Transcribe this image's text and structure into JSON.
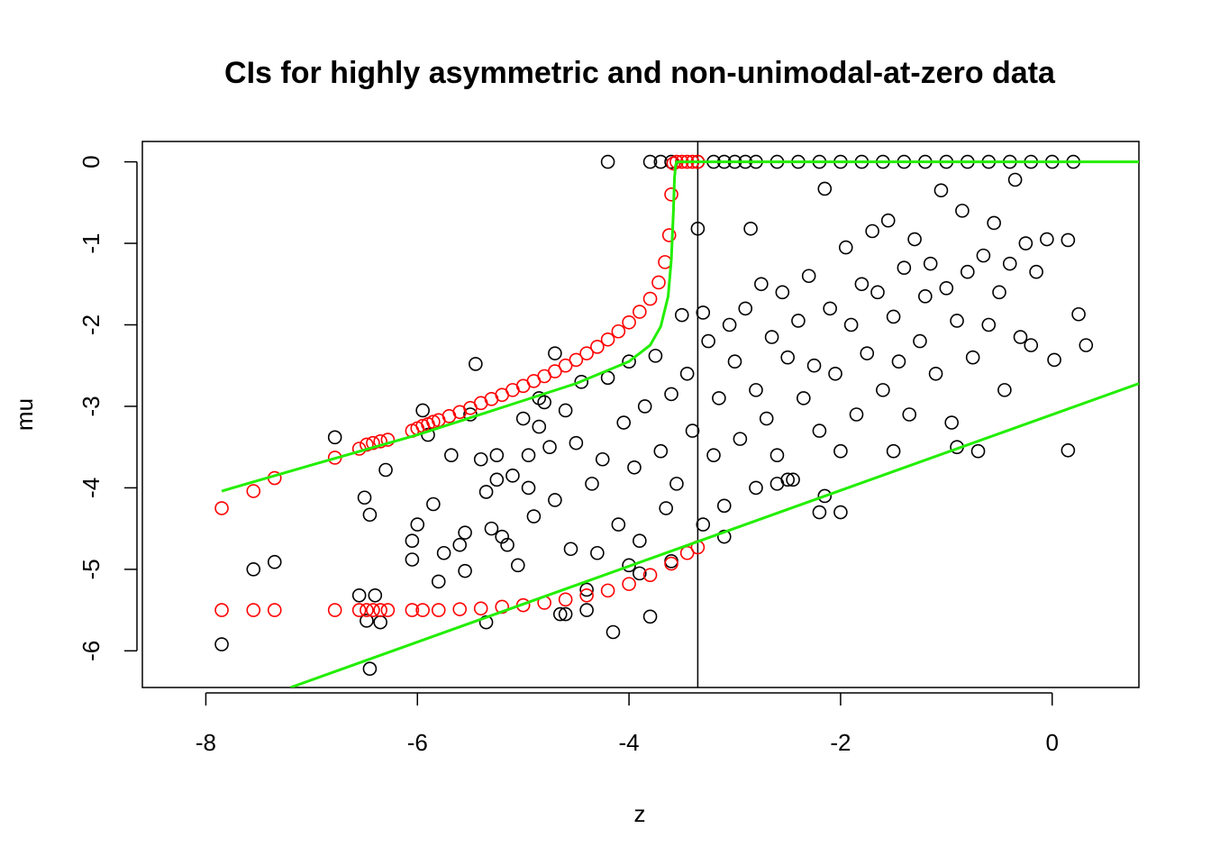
{
  "chart_data": {
    "type": "scatter",
    "title": "CIs for highly asymmetric and non-unimodal-at-zero data",
    "xlabel": "z",
    "ylabel": "mu",
    "xlim": [
      -8.6,
      0.82
    ],
    "ylim": [
      -6.45,
      0.25
    ],
    "xticks": [
      -8,
      -6,
      -4,
      -2,
      0
    ],
    "yticks": [
      0,
      -1,
      -2,
      -3,
      -4,
      -5,
      -6
    ],
    "xtick_labels": [
      "-8",
      "-6",
      "-4",
      "-2",
      "0"
    ],
    "ytick_labels": [
      "0",
      "-1",
      "-2",
      "-3",
      "-4",
      "-5",
      "-6"
    ],
    "vertical_line_x": -3.35,
    "grid": false,
    "legend": "none",
    "colors": {
      "observations": "#000000",
      "ci_endpoints": "#ff0000",
      "ci_reference_lines": "#22ee00"
    },
    "series": [
      {
        "type": "scatter-open-circle",
        "color": "#000000",
        "points": [
          [
            -7.85,
            -5.92
          ],
          [
            -7.35,
            -4.91
          ],
          [
            -7.55,
            -5.0
          ],
          [
            -6.78,
            -3.38
          ],
          [
            -6.55,
            -5.32
          ],
          [
            -6.48,
            -5.63
          ],
          [
            -6.45,
            -6.22
          ],
          [
            -6.4,
            -5.32
          ],
          [
            -6.35,
            -5.65
          ],
          [
            -6.3,
            -3.78
          ],
          [
            -6.45,
            -4.33
          ],
          [
            -6.5,
            -4.12
          ],
          [
            -6.05,
            -4.88
          ],
          [
            -6.05,
            -4.65
          ],
          [
            -6.0,
            -4.45
          ],
          [
            -5.95,
            -3.05
          ],
          [
            -5.9,
            -3.35
          ],
          [
            -5.85,
            -4.2
          ],
          [
            -5.8,
            -5.15
          ],
          [
            -5.75,
            -4.8
          ],
          [
            -5.68,
            -3.6
          ],
          [
            -5.6,
            -4.7
          ],
          [
            -5.55,
            -5.02
          ],
          [
            -5.5,
            -3.1
          ],
          [
            -5.45,
            -2.48
          ],
          [
            -5.4,
            -3.65
          ],
          [
            -5.35,
            -5.65
          ],
          [
            -5.3,
            -4.5
          ],
          [
            -5.25,
            -3.9
          ],
          [
            -5.2,
            -4.6
          ],
          [
            -5.1,
            -3.85
          ],
          [
            -5.05,
            -4.95
          ],
          [
            -5.0,
            -3.15
          ],
          [
            -4.95,
            -4.0
          ],
          [
            -4.9,
            -4.35
          ],
          [
            -4.85,
            -3.25
          ],
          [
            -4.8,
            -2.95
          ],
          [
            -4.75,
            -3.5
          ],
          [
            -4.7,
            -4.15
          ],
          [
            -4.65,
            -5.55
          ],
          [
            -4.6,
            -3.05
          ],
          [
            -4.55,
            -4.75
          ],
          [
            -4.5,
            -3.45
          ],
          [
            -4.45,
            -2.7
          ],
          [
            -4.4,
            -5.5
          ],
          [
            -4.35,
            -3.95
          ],
          [
            -4.3,
            -4.8
          ],
          [
            -4.25,
            -3.65
          ],
          [
            -4.2,
            -2.65
          ],
          [
            -4.15,
            -5.77
          ],
          [
            -4.1,
            -4.45
          ],
          [
            -4.05,
            -3.2
          ],
          [
            -4.0,
            -2.45
          ],
          [
            -3.95,
            -3.75
          ],
          [
            -3.9,
            -4.65
          ],
          [
            -3.85,
            -3.0
          ],
          [
            -3.8,
            -5.58
          ],
          [
            -3.75,
            -2.38
          ],
          [
            -3.7,
            -3.55
          ],
          [
            -3.65,
            -4.25
          ],
          [
            -3.6,
            -2.85
          ],
          [
            -3.55,
            -3.95
          ],
          [
            -3.5,
            -1.88
          ],
          [
            -3.45,
            -2.6
          ],
          [
            -3.4,
            -3.3
          ],
          [
            -3.35,
            -0.82
          ],
          [
            -3.3,
            -1.85
          ],
          [
            -3.25,
            -2.2
          ],
          [
            -3.2,
            -3.6
          ],
          [
            -3.15,
            -2.9
          ],
          [
            -3.1,
            -4.22
          ],
          [
            -3.05,
            -2.0
          ],
          [
            -3.0,
            -2.45
          ],
          [
            -2.95,
            -3.4
          ],
          [
            -2.9,
            -1.8
          ],
          [
            -2.85,
            -0.82
          ],
          [
            -2.8,
            -2.8
          ],
          [
            -2.75,
            -1.5
          ],
          [
            -2.7,
            -3.15
          ],
          [
            -2.65,
            -2.15
          ],
          [
            -2.6,
            -3.6
          ],
          [
            -2.55,
            -1.6
          ],
          [
            -2.5,
            -2.4
          ],
          [
            -2.45,
            -3.9
          ],
          [
            -2.4,
            -1.95
          ],
          [
            -2.35,
            -2.9
          ],
          [
            -2.3,
            -1.4
          ],
          [
            -2.25,
            -2.5
          ],
          [
            -2.2,
            -3.3
          ],
          [
            -2.15,
            -0.33
          ],
          [
            -2.1,
            -1.8
          ],
          [
            -2.05,
            -2.6
          ],
          [
            -2.0,
            -4.3
          ],
          [
            -1.95,
            -1.05
          ],
          [
            -1.9,
            -2.0
          ],
          [
            -1.85,
            -3.1
          ],
          [
            -1.8,
            -1.5
          ],
          [
            -1.75,
            -2.35
          ],
          [
            -1.7,
            -0.85
          ],
          [
            -1.65,
            -1.6
          ],
          [
            -1.6,
            -2.8
          ],
          [
            -1.55,
            -0.72
          ],
          [
            -1.5,
            -1.9
          ],
          [
            -1.45,
            -2.45
          ],
          [
            -1.4,
            -1.3
          ],
          [
            -1.35,
            -3.1
          ],
          [
            -1.3,
            -0.95
          ],
          [
            -1.25,
            -2.2
          ],
          [
            -1.2,
            -1.65
          ],
          [
            -1.15,
            -1.25
          ],
          [
            -1.1,
            -2.6
          ],
          [
            -1.05,
            -0.35
          ],
          [
            -1.0,
            -1.55
          ],
          [
            -0.95,
            -3.2
          ],
          [
            -0.9,
            -1.95
          ],
          [
            -0.85,
            -0.6
          ],
          [
            -0.8,
            -1.35
          ],
          [
            -0.75,
            -2.4
          ],
          [
            -0.7,
            -3.55
          ],
          [
            -0.65,
            -1.15
          ],
          [
            -0.6,
            -2.0
          ],
          [
            -0.55,
            -0.75
          ],
          [
            -0.5,
            -1.6
          ],
          [
            -0.45,
            -2.8
          ],
          [
            -0.4,
            -1.25
          ],
          [
            -0.35,
            -0.22
          ],
          [
            -0.3,
            -2.15
          ],
          [
            -0.25,
            -1.0
          ],
          [
            -0.2,
            -2.25
          ],
          [
            -0.15,
            -1.35
          ],
          [
            -0.05,
            -0.95
          ],
          [
            0.02,
            -2.43
          ],
          [
            0.15,
            -3.54
          ],
          [
            0.15,
            -0.96
          ],
          [
            0.25,
            -1.87
          ],
          [
            0.32,
            -2.25
          ],
          [
            -0.9,
            -3.5
          ],
          [
            -1.5,
            -3.55
          ],
          [
            -2.0,
            -3.55
          ],
          [
            -2.5,
            -3.9
          ],
          [
            -2.8,
            -4.0
          ],
          [
            -3.1,
            -4.6
          ],
          [
            -3.6,
            -4.9
          ],
          [
            -4.0,
            -4.95
          ],
          [
            -4.4,
            -5.25
          ],
          [
            -4.6,
            -5.55
          ],
          [
            -3.9,
            -5.05
          ],
          [
            -3.3,
            -4.45
          ],
          [
            -4.95,
            -3.6
          ],
          [
            -5.15,
            -4.7
          ],
          [
            -5.55,
            -4.55
          ],
          [
            -4.7,
            -2.35
          ],
          [
            -4.85,
            -2.9
          ],
          [
            -5.25,
            -3.6
          ],
          [
            -5.35,
            -4.05
          ],
          [
            -2.6,
            -3.95
          ],
          [
            -2.2,
            -4.3
          ],
          [
            -2.15,
            -4.1
          ],
          [
            -4.2,
            0.0
          ],
          [
            -3.8,
            0.0
          ],
          [
            -3.7,
            0.0
          ],
          [
            -3.6,
            0.0
          ],
          [
            -3.35,
            0.0
          ],
          [
            -3.2,
            0.0
          ],
          [
            -3.1,
            0.0
          ],
          [
            -3.0,
            0.0
          ],
          [
            -2.9,
            0.0
          ],
          [
            -2.8,
            0.0
          ],
          [
            -2.6,
            0.0
          ],
          [
            -2.4,
            0.0
          ],
          [
            -2.2,
            0.0
          ],
          [
            -2.0,
            0.0
          ],
          [
            -1.8,
            0.0
          ],
          [
            -1.6,
            0.0
          ],
          [
            -1.4,
            0.0
          ],
          [
            -1.2,
            0.0
          ],
          [
            -1.0,
            0.0
          ],
          [
            -0.8,
            0.0
          ],
          [
            -0.6,
            0.0
          ],
          [
            -0.4,
            0.0
          ],
          [
            -0.2,
            0.0
          ],
          [
            0.0,
            0.0
          ],
          [
            0.2,
            0.0
          ]
        ]
      },
      {
        "type": "scatter-open-circle",
        "color": "#ff0000",
        "points": [
          [
            -7.85,
            -4.25
          ],
          [
            -7.55,
            -4.04
          ],
          [
            -7.35,
            -3.88
          ],
          [
            -6.78,
            -3.63
          ],
          [
            -6.55,
            -3.52
          ],
          [
            -6.48,
            -3.47
          ],
          [
            -6.42,
            -3.45
          ],
          [
            -6.35,
            -3.43
          ],
          [
            -6.28,
            -3.41
          ],
          [
            -6.05,
            -3.3
          ],
          [
            -6.0,
            -3.27
          ],
          [
            -5.95,
            -3.24
          ],
          [
            -5.9,
            -3.22
          ],
          [
            -5.85,
            -3.19
          ],
          [
            -5.8,
            -3.17
          ],
          [
            -5.7,
            -3.12
          ],
          [
            -5.6,
            -3.07
          ],
          [
            -5.5,
            -3.02
          ],
          [
            -5.4,
            -2.96
          ],
          [
            -5.3,
            -2.91
          ],
          [
            -5.2,
            -2.86
          ],
          [
            -5.1,
            -2.8
          ],
          [
            -5.0,
            -2.75
          ],
          [
            -4.9,
            -2.69
          ],
          [
            -4.8,
            -2.63
          ],
          [
            -4.7,
            -2.57
          ],
          [
            -4.6,
            -2.5
          ],
          [
            -4.5,
            -2.43
          ],
          [
            -4.4,
            -2.35
          ],
          [
            -4.3,
            -2.27
          ],
          [
            -4.2,
            -2.18
          ],
          [
            -4.1,
            -2.08
          ],
          [
            -4.0,
            -1.97
          ],
          [
            -3.9,
            -1.84
          ],
          [
            -3.8,
            -1.68
          ],
          [
            -3.72,
            -1.48
          ],
          [
            -3.66,
            -1.23
          ],
          [
            -3.62,
            -0.9
          ],
          [
            -3.6,
            -0.4
          ],
          [
            -3.58,
            -0.02
          ],
          [
            -3.55,
            0.0
          ],
          [
            -3.5,
            0.0
          ],
          [
            -3.45,
            0.0
          ],
          [
            -3.4,
            0.0
          ],
          [
            -3.35,
            0.0
          ],
          [
            -7.85,
            -5.5
          ],
          [
            -7.55,
            -5.5
          ],
          [
            -7.35,
            -5.5
          ],
          [
            -6.78,
            -5.5
          ],
          [
            -6.55,
            -5.5
          ],
          [
            -6.48,
            -5.5
          ],
          [
            -6.42,
            -5.5
          ],
          [
            -6.35,
            -5.5
          ],
          [
            -6.28,
            -5.5
          ],
          [
            -6.05,
            -5.5
          ],
          [
            -5.95,
            -5.5
          ],
          [
            -5.8,
            -5.5
          ],
          [
            -5.6,
            -5.49
          ],
          [
            -5.4,
            -5.48
          ],
          [
            -5.2,
            -5.46
          ],
          [
            -5.0,
            -5.44
          ],
          [
            -4.8,
            -5.41
          ],
          [
            -4.6,
            -5.37
          ],
          [
            -4.4,
            -5.32
          ],
          [
            -4.2,
            -5.26
          ],
          [
            -4.0,
            -5.18
          ],
          [
            -3.8,
            -5.07
          ],
          [
            -3.6,
            -4.93
          ],
          [
            -3.45,
            -4.8
          ],
          [
            -3.35,
            -4.73
          ]
        ]
      },
      {
        "type": "line",
        "color": "#22ee00",
        "points": [
          [
            -7.85,
            -4.04
          ],
          [
            -7.0,
            -3.72
          ],
          [
            -6.0,
            -3.35
          ],
          [
            -5.0,
            -2.93
          ],
          [
            -4.5,
            -2.72
          ],
          [
            -4.0,
            -2.45
          ],
          [
            -3.8,
            -2.25
          ],
          [
            -3.7,
            -2.02
          ],
          [
            -3.63,
            -1.65
          ],
          [
            -3.6,
            -1.2
          ],
          [
            -3.58,
            -0.6
          ],
          [
            -3.57,
            -0.2
          ],
          [
            -3.56,
            -0.05
          ],
          [
            -3.55,
            0.0
          ],
          [
            -3.4,
            0.0
          ],
          [
            -3.0,
            0.0
          ],
          [
            -2.0,
            0.0
          ],
          [
            -1.0,
            0.0
          ],
          [
            0.0,
            0.0
          ],
          [
            0.82,
            0.0
          ]
        ]
      },
      {
        "type": "line",
        "color": "#22ee00",
        "points": [
          [
            -7.2,
            -6.45
          ],
          [
            0.82,
            -2.72
          ]
        ]
      }
    ]
  }
}
